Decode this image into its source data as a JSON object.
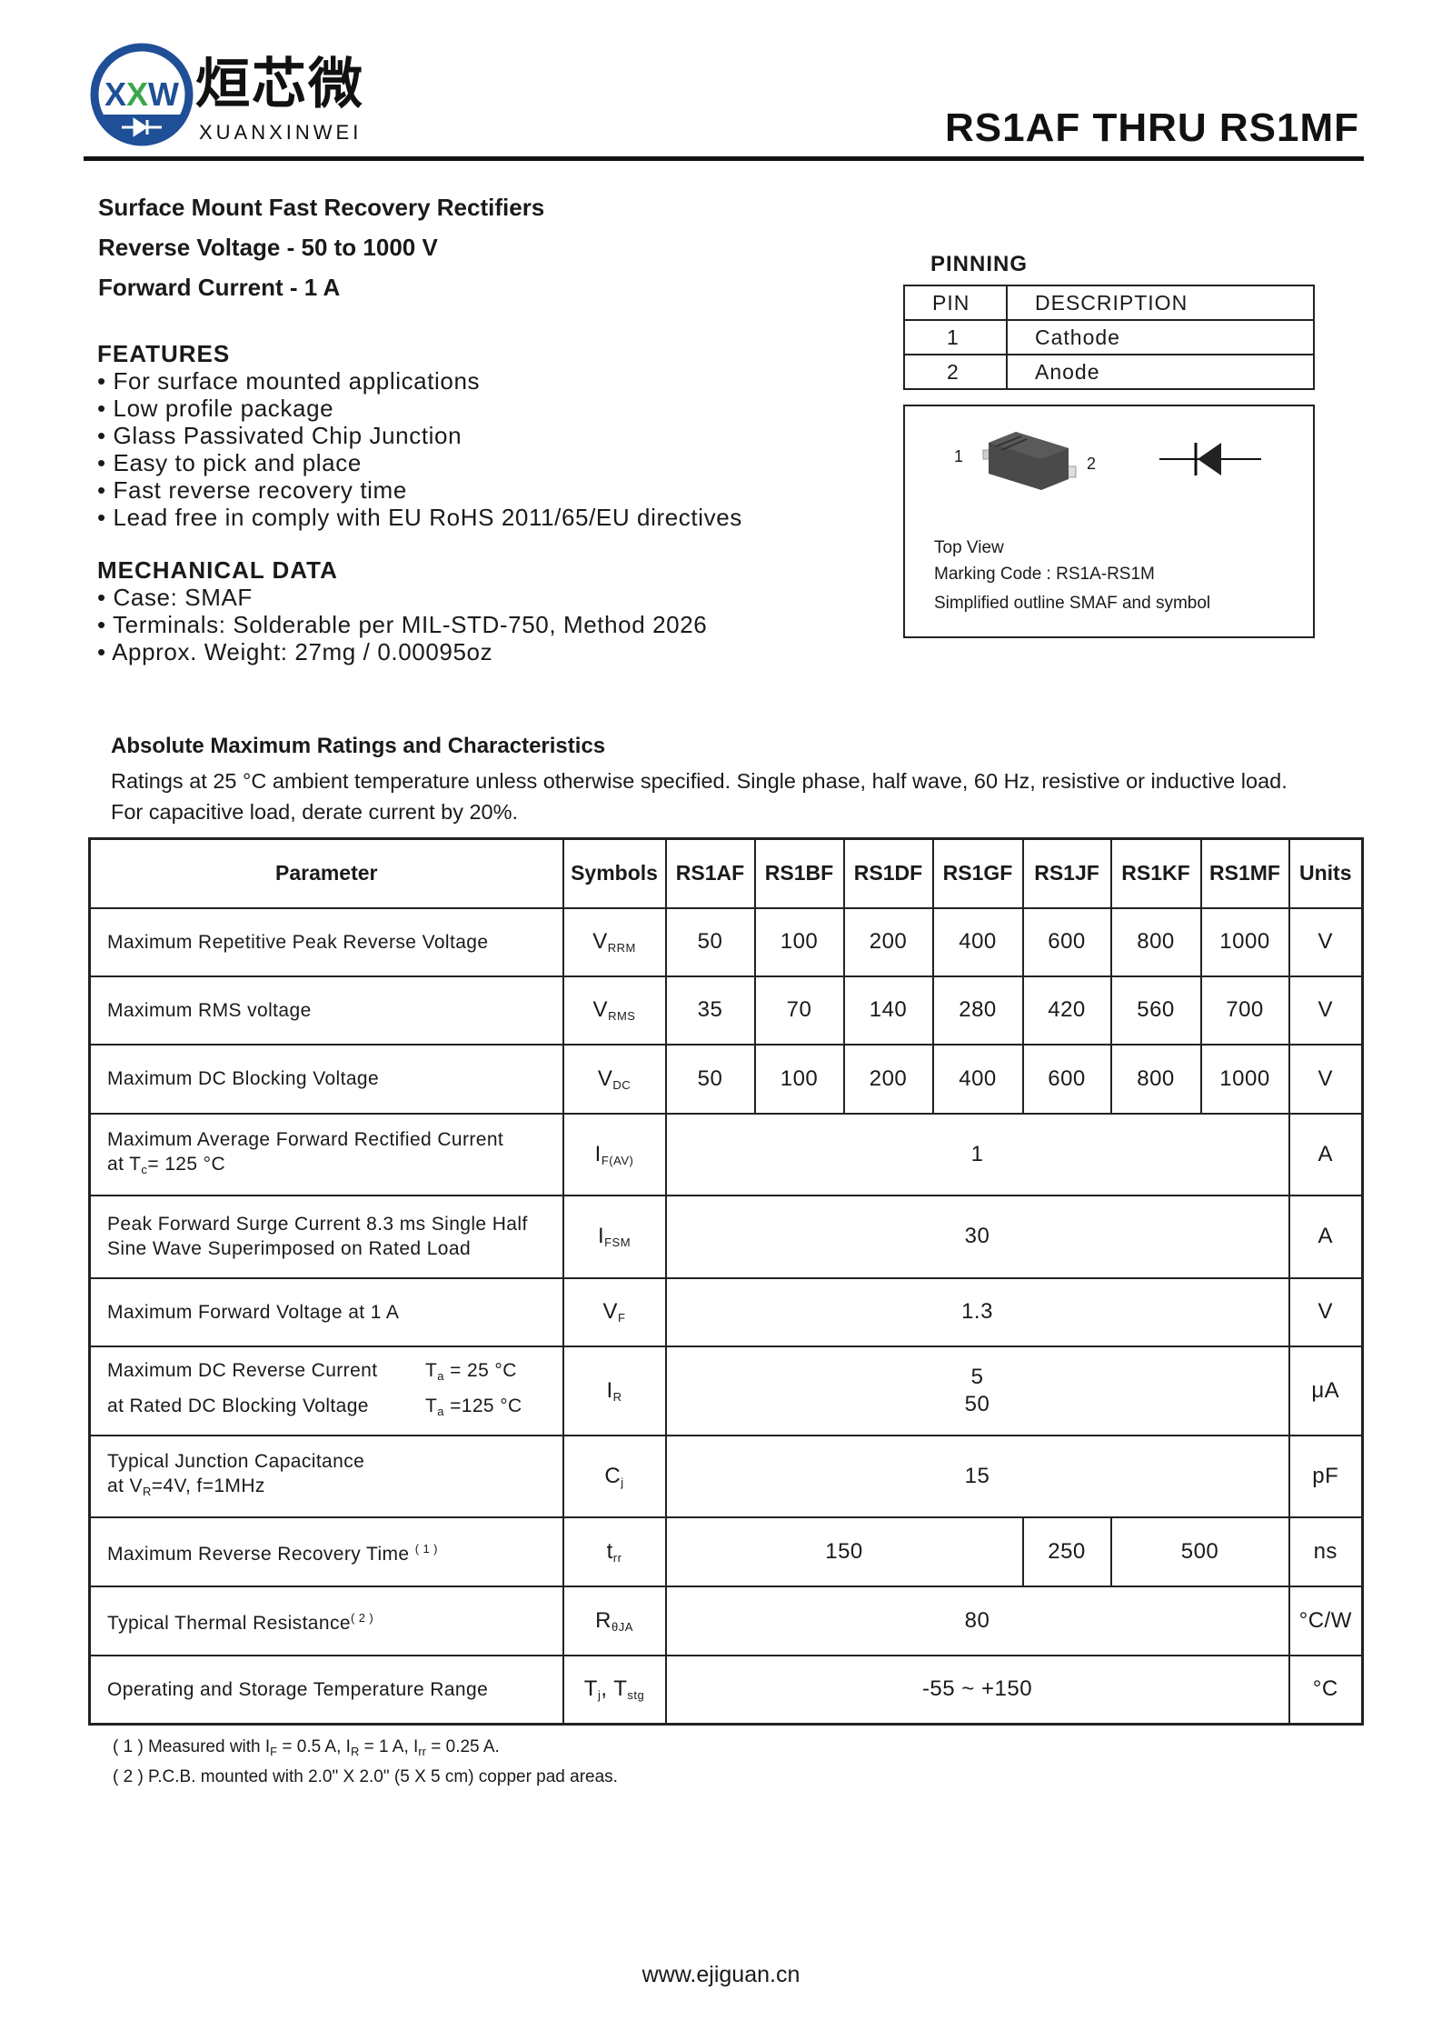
{
  "header": {
    "logo_text": "XXW",
    "brand_cn": "烜芯微",
    "brand_en": "XUANXINWEI",
    "title": "RS1AF  THRU  RS1MF",
    "logo_colors": {
      "blue": "#1f4f97",
      "green": "#3aa84a"
    }
  },
  "intro": [
    "Surface Mount Fast Recovery Rectifiers",
    "Reverse Voltage - 50 to 1000 V",
    "Forward Current - 1 A"
  ],
  "features": {
    "title": "FEATURES",
    "items": [
      "• For surface mounted applications",
      "• Low profile package",
      "• Glass Passivated Chip Junction",
      "• Easy to pick and place",
      "• Fast reverse recovery time",
      "• Lead free in comply with EU RoHS 2011/65/EU directives"
    ]
  },
  "mechanical": {
    "title": "MECHANICAL DATA",
    "items": [
      "• Case: SMAF",
      "• Terminals: Solderable per MIL-STD-750, Method 2026",
      "• Approx. Weight:  27mg / 0.00095oz"
    ]
  },
  "pinning": {
    "title": "PINNING",
    "headers": [
      "PIN",
      "DESCRIPTION"
    ],
    "rows": [
      [
        "1",
        "Cathode"
      ],
      [
        "2",
        "Anode"
      ]
    ]
  },
  "package": {
    "pin1": "1",
    "pin2": "2",
    "top_view": "Top View",
    "marking": "Marking Code :  RS1A-RS1M",
    "caption": "Simplified outline SMAF and symbol"
  },
  "ratings": {
    "title": "Absolute Maximum Ratings and Characteristics",
    "note1": "Ratings at 25 °C ambient temperature unless otherwise specified. Single phase, half wave, 60 Hz, resistive or inductive load.",
    "note2": "For capacitive load, derate current by 20%."
  },
  "table": {
    "headers": [
      "Parameter",
      "Symbols",
      "RS1AF",
      "RS1BF",
      "RS1DF",
      "RS1GF",
      "RS1JF",
      "RS1KF",
      "RS1MF",
      "Units"
    ],
    "rows": [
      {
        "param": "Maximum Repetitive Peak Reverse Voltage",
        "sym": "V",
        "sub": "RRM",
        "values": [
          "50",
          "100",
          "200",
          "400",
          "600",
          "800",
          "1000"
        ],
        "unit": "V"
      },
      {
        "param": "Maximum RMS voltage",
        "sym": "V",
        "sub": "RMS",
        "values": [
          "35",
          "70",
          "140",
          "280",
          "420",
          "560",
          "700"
        ],
        "unit": "V"
      },
      {
        "param": "Maximum DC Blocking Voltage",
        "sym": "V",
        "sub": "DC",
        "values": [
          "50",
          "100",
          "200",
          "400",
          "600",
          "800",
          "1000"
        ],
        "unit": "V"
      },
      {
        "param": "Maximum Average Forward Rectified Current",
        "param2": "at T",
        "param2_sub": "c",
        "param2_end": "= 125 °C",
        "sym": "I",
        "sub": "F(AV)",
        "value": "1",
        "unit": "A"
      },
      {
        "param": "Peak Forward Surge Current 8.3 ms Single Half",
        "param2": "Sine Wave Superimposed on Rated Load",
        "sym": "I",
        "sub": "FSM",
        "value": "30",
        "unit": "A"
      },
      {
        "param": "Maximum  Forward Voltage at 1 A",
        "sym": "V",
        "sub": "F",
        "value": "1.3",
        "unit": "V"
      },
      {
        "param": "Maximum DC Reverse Current",
        "param2": "at Rated DC Blocking Voltage",
        "cond1": "T",
        "cond1_sub": "a",
        "cond1_end": " = 25 °C",
        "cond2": "T",
        "cond2_sub": "a",
        "cond2_end": " =125 °C",
        "sym": "I",
        "sub": "R",
        "value": "5",
        "value2": "50",
        "unit": "μA"
      },
      {
        "param": "Typical Junction Capacitance",
        "param2": "at V",
        "param2_sub": "R",
        "param2_end": "=4V, f=1MHz",
        "sym": "C",
        "sub": "j",
        "value": "15",
        "unit": "pF"
      },
      {
        "param": "Maximum Reverse Recovery Time",
        "note": "( 1 )",
        "sym": "t",
        "sub": "rr",
        "values": [
          "150",
          "250",
          "500"
        ],
        "unit": "ns"
      },
      {
        "param": "Typical Thermal Resistance",
        "note": "( 2 )",
        "sym": "R",
        "sub": "θJA",
        "value": "80",
        "unit": "°C/W"
      },
      {
        "param": "Operating and Storage Temperature Range",
        "sym": "T",
        "sub": "j",
        "sym2": ", T",
        "sub2": "stg",
        "value": "-55 ~ +150",
        "unit": "°C"
      }
    ]
  },
  "footnotes": {
    "f1": {
      "a": "( 1 ) Measured with I",
      "a_sub": "F",
      "b": " = 0.5 A, I",
      "b_sub": "R",
      "c": " = 1 A, I",
      "c_sub": "rr",
      "d": " = 0.25 A."
    },
    "f2": "( 2 ) P.C.B. mounted with 2.0\" X 2.0\" (5 X 5 cm) copper pad areas."
  },
  "footer": {
    "url": "www.ejiguan.cn"
  }
}
